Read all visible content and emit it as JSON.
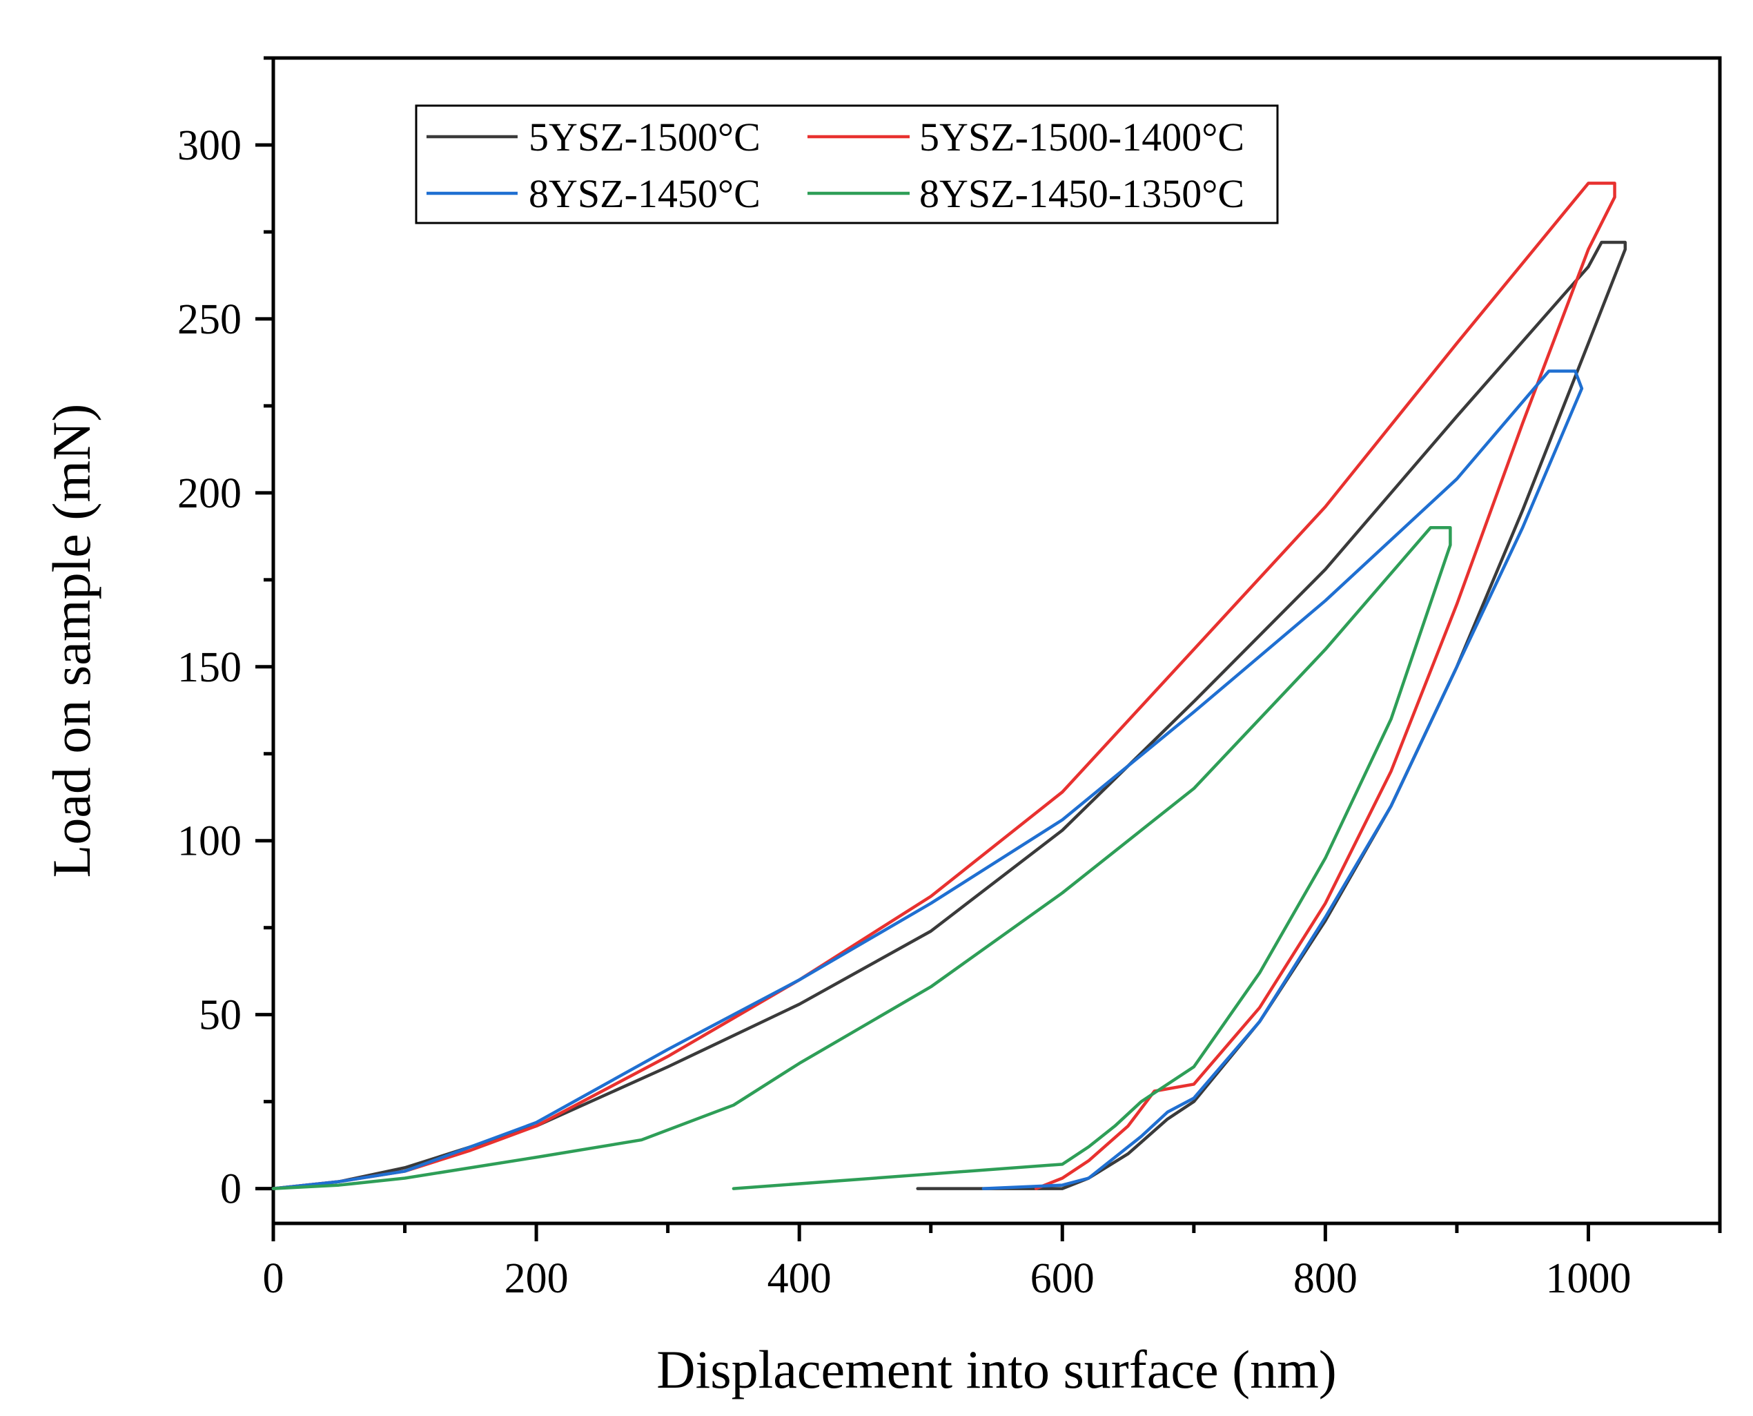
{
  "chart_data": {
    "type": "line",
    "title": "",
    "xlabel": "Displacement into surface (nm)",
    "ylabel": "Load on sample (mN)",
    "xlim": [
      0,
      1100
    ],
    "ylim": [
      -10,
      325
    ],
    "xticks": [
      0,
      200,
      400,
      600,
      800,
      1000
    ],
    "yticks": [
      0,
      50,
      100,
      150,
      200,
      250,
      300
    ],
    "xtick_labels": [
      "0",
      "200",
      "400",
      "600",
      "800",
      "1000"
    ],
    "ytick_labels": [
      "0",
      "50",
      "100",
      "150",
      "200",
      "250",
      "300"
    ],
    "grid": false,
    "legend": "top-left",
    "series": [
      {
        "name": "5YSZ-1500°C",
        "color": "#3a3a3a",
        "x": [
          0,
          50,
          100,
          150,
          200,
          300,
          400,
          500,
          600,
          700,
          800,
          900,
          1000,
          1010,
          1028,
          1028,
          1000,
          950,
          900,
          850,
          800,
          750,
          700,
          680,
          650,
          620,
          600,
          490
        ],
        "y": [
          0,
          2,
          6,
          12,
          18,
          35,
          53,
          74,
          103,
          140,
          178,
          222,
          265,
          272,
          272,
          270,
          243,
          195,
          150,
          110,
          77,
          48,
          25,
          20,
          10,
          3,
          0,
          0
        ]
      },
      {
        "name": "5YSZ-1500-1400°C",
        "color": "#e8312f",
        "x": [
          0,
          50,
          100,
          150,
          200,
          300,
          400,
          500,
          600,
          700,
          800,
          900,
          1000,
          1020,
          1020,
          1000,
          950,
          900,
          850,
          800,
          750,
          700,
          670,
          650,
          620,
          600,
          580
        ],
        "y": [
          0,
          2,
          5,
          11,
          18,
          38,
          60,
          84,
          114,
          155,
          196,
          243,
          289,
          289,
          285,
          270,
          220,
          168,
          120,
          82,
          52,
          30,
          28,
          18,
          8,
          3,
          0
        ]
      },
      {
        "name": "8YSZ-1450°C",
        "color": "#1f6fd1",
        "x": [
          0,
          50,
          100,
          150,
          200,
          300,
          400,
          500,
          600,
          700,
          800,
          900,
          970,
          990,
          995,
          950,
          900,
          850,
          800,
          750,
          700,
          680,
          660,
          620,
          600,
          540
        ],
        "y": [
          0,
          2,
          5,
          12,
          19,
          40,
          60,
          82,
          106,
          137,
          169,
          204,
          235,
          235,
          230,
          190,
          150,
          110,
          78,
          48,
          26,
          22,
          15,
          3,
          1,
          0
        ]
      },
      {
        "name": "8YSZ-1450-1350°C",
        "color": "#2e9e57",
        "x": [
          0,
          50,
          100,
          150,
          200,
          280,
          350,
          400,
          500,
          600,
          700,
          800,
          880,
          895,
          895,
          850,
          800,
          750,
          700,
          660,
          640,
          620,
          600,
          350
        ],
        "y": [
          0,
          1,
          3,
          6,
          9,
          14,
          24,
          36,
          58,
          85,
          115,
          155,
          190,
          190,
          185,
          135,
          95,
          62,
          35,
          25,
          18,
          12,
          7,
          0
        ]
      }
    ],
    "legend_entries": [
      {
        "label": "5YSZ-1500°C",
        "color": "#3a3a3a"
      },
      {
        "label": "5YSZ-1500-1400°C",
        "color": "#e8312f"
      },
      {
        "label": "8YSZ-1450°C",
        "color": "#1f6fd1"
      },
      {
        "label": "8YSZ-1450-1350°C",
        "color": "#2e9e57"
      }
    ]
  }
}
